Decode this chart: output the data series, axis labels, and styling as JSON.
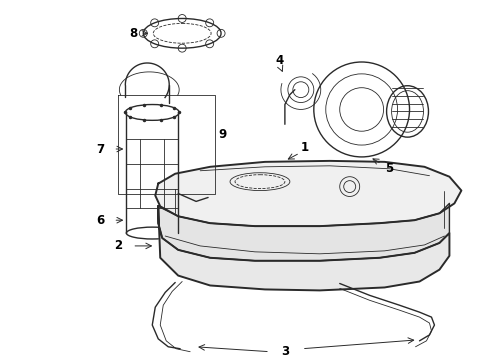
{
  "background_color": "#ffffff",
  "line_color": "#2a2a2a",
  "label_color": "#000000",
  "font_size": 8.5,
  "lw": 1.0,
  "lw_thin": 0.6,
  "lw_thick": 1.4,
  "figsize": [
    4.9,
    3.6
  ],
  "dpi": 100
}
